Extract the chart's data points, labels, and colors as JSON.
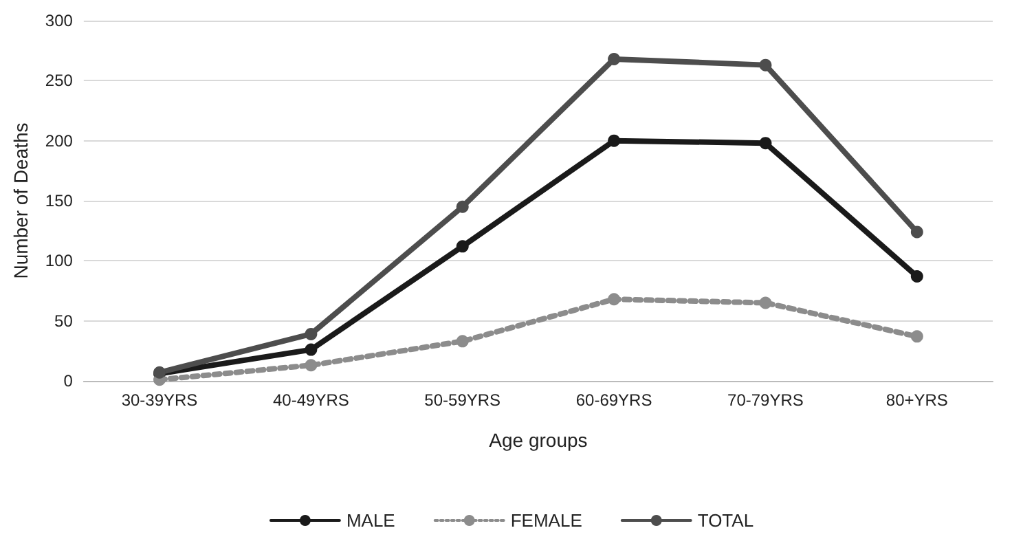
{
  "chart_data": {
    "type": "line",
    "xlabel": "Age groups",
    "ylabel": "Number of Deaths",
    "categories": [
      "30-39YRS",
      "40-49YRS",
      "50-59YRS",
      "60-69YRS",
      "70-79YRS",
      "80+YRS"
    ],
    "series": [
      {
        "name": "MALE",
        "color": "#1a1a1a",
        "values": [
          6,
          26,
          112,
          200,
          198,
          87
        ]
      },
      {
        "name": "FEMALE",
        "color": "#8c8c8c",
        "values": [
          1,
          13,
          33,
          68,
          65,
          37
        ],
        "line_style": "dotted"
      },
      {
        "name": "TOTAL",
        "color": "#4d4d4d",
        "values": [
          7,
          39,
          145,
          268,
          263,
          124
        ]
      }
    ],
    "ylim": [
      0,
      300
    ],
    "yticks": [
      0,
      50,
      100,
      150,
      200,
      250,
      300
    ],
    "grid": "y",
    "legend": "bottom",
    "marker": "circle",
    "line_style": "solid"
  }
}
